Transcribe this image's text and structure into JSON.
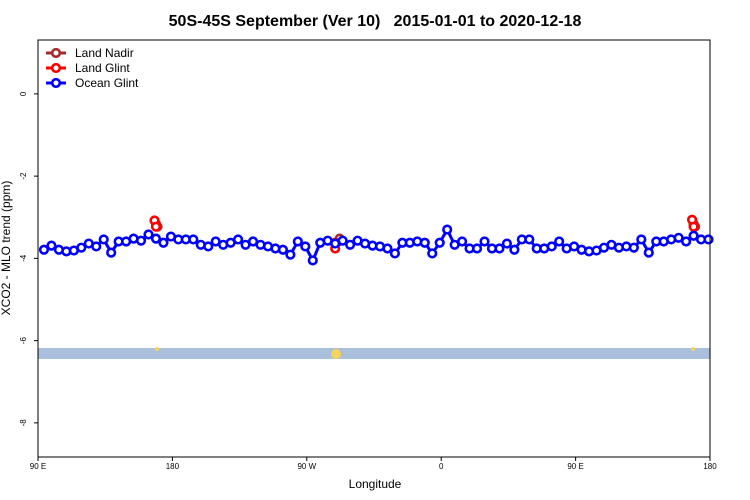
{
  "chart_data": {
    "type": "line",
    "title": "50S-45S September (Ver 10)   2015-01-01 to 2020-12-18",
    "xlabel": "Longitude",
    "ylabel": "XCO2 - MLO trend (ppm)",
    "xlim": [
      90,
      540
    ],
    "ylim": [
      -8.83,
      1.31
    ],
    "xticks": [
      {
        "value": 90,
        "label": "90 E"
      },
      {
        "value": 180,
        "label": "180"
      },
      {
        "value": 270,
        "label": "90 W"
      },
      {
        "value": 360,
        "label": "0"
      },
      {
        "value": 450,
        "label": "90 E"
      },
      {
        "value": 540,
        "label": "180"
      }
    ],
    "yticks": [
      0,
      -2,
      -4,
      -6,
      -8
    ],
    "legend": "top-left",
    "series": [
      {
        "name": "Land Nadir",
        "color": "#a52a2a",
        "x": [
          169,
          170,
          null,
          291,
          292,
          null,
          529,
          530
        ],
        "values": [
          -3.16,
          -3.23,
          null,
          -3.59,
          -3.52,
          null,
          -3.16,
          -3.23
        ]
      },
      {
        "name": "Land Glint",
        "color": "#ff0000",
        "x": [
          168,
          169,
          null,
          289,
          289,
          null,
          528,
          529
        ],
        "values": [
          -3.08,
          -3.23,
          null,
          -3.62,
          -3.76,
          null,
          -3.06,
          -3.23
        ]
      },
      {
        "name": "Ocean Glint",
        "color": "#0000ff",
        "x": [
          94,
          99,
          104,
          109,
          114,
          119,
          124,
          129,
          134,
          139,
          144,
          149,
          154,
          159,
          164,
          169,
          174,
          179,
          184,
          189,
          194,
          199,
          204,
          209,
          214,
          219,
          224,
          229,
          234,
          239,
          244,
          249,
          254,
          259,
          264,
          269,
          274,
          279,
          284,
          289,
          294,
          299,
          304,
          309,
          314,
          319,
          324,
          329,
          334,
          339,
          344,
          349,
          354,
          359,
          364,
          369,
          374,
          379,
          384,
          389,
          394,
          399,
          404,
          409,
          414,
          419,
          424,
          429,
          434,
          439,
          444,
          449,
          454,
          459,
          464,
          469,
          474,
          479,
          484,
          489,
          494,
          499,
          504,
          509,
          514,
          519,
          524,
          529,
          534,
          539
        ],
        "values": [
          -3.79,
          -3.69,
          -3.79,
          -3.83,
          -3.81,
          -3.74,
          -3.64,
          -3.71,
          -3.54,
          -3.86,
          -3.59,
          -3.59,
          -3.52,
          -3.57,
          -3.42,
          -3.52,
          -3.62,
          -3.47,
          -3.54,
          -3.54,
          -3.54,
          -3.67,
          -3.71,
          -3.59,
          -3.67,
          -3.62,
          -3.54,
          -3.67,
          -3.59,
          -3.67,
          -3.71,
          -3.76,
          -3.79,
          -3.91,
          -3.59,
          -3.71,
          -4.05,
          -3.62,
          -3.57,
          -3.64,
          -3.57,
          -3.67,
          -3.57,
          -3.64,
          -3.69,
          -3.71,
          -3.76,
          -3.88,
          -3.62,
          -3.62,
          -3.59,
          -3.62,
          -3.88,
          -3.62,
          -3.3,
          -3.67,
          -3.59,
          -3.76,
          -3.76,
          -3.59,
          -3.76,
          -3.76,
          -3.64,
          -3.79,
          -3.54,
          -3.54,
          -3.76,
          -3.76,
          -3.71,
          -3.59,
          -3.76,
          -3.71,
          -3.79,
          -3.83,
          -3.81,
          -3.74,
          -3.67,
          -3.74,
          -3.71,
          -3.74,
          -3.54,
          -3.86,
          -3.59,
          -3.59,
          -3.54,
          -3.5,
          -3.59,
          -3.45,
          -3.54,
          -3.54
        ]
      }
    ]
  }
}
